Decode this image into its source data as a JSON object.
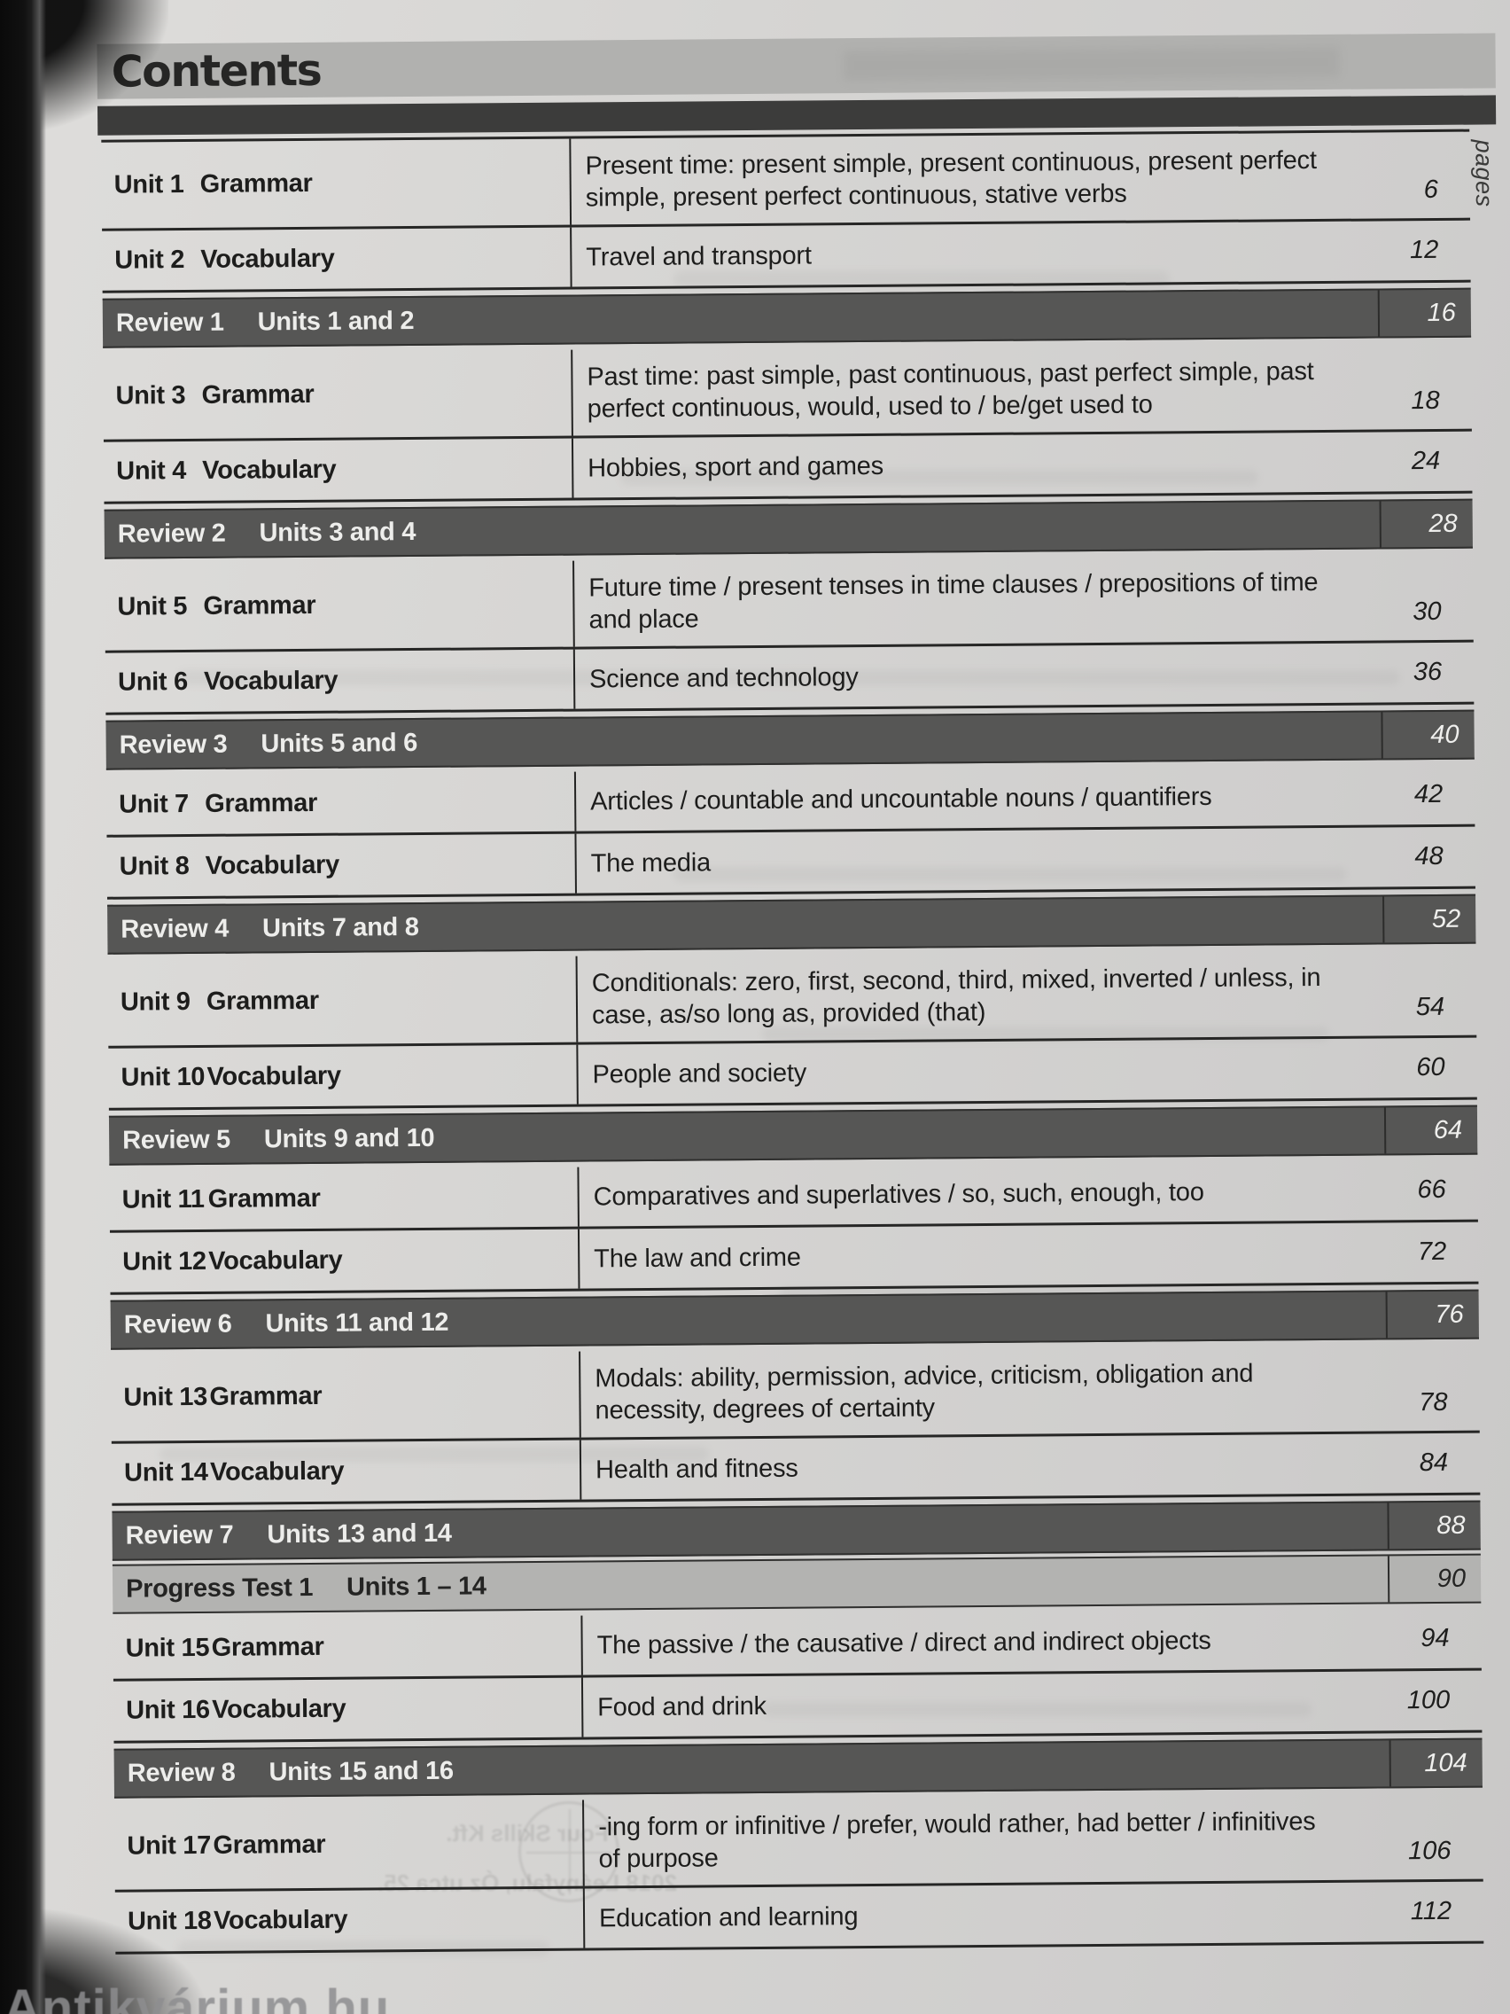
{
  "page": {
    "title": "Contents",
    "pages_label": "pages"
  },
  "toc": {
    "rows": [
      {
        "type": "unit",
        "unit": "Unit 1",
        "category": "Grammar",
        "description": "Present time: present simple, present continuous, present perfect simple, present perfect continuous, stative verbs",
        "page": "6",
        "lines": 2
      },
      {
        "type": "unit",
        "unit": "Unit 2",
        "category": "Vocabulary",
        "description": "Travel and transport",
        "page": "12",
        "lines": 1
      },
      {
        "type": "review",
        "label": "Review 1",
        "units": "Units 1 and 2",
        "page": "16"
      },
      {
        "type": "unit",
        "unit": "Unit 3",
        "category": "Grammar",
        "description": "Past time: past simple, past continuous, past perfect simple, past perfect continuous, would, used to / be/get used to",
        "page": "18",
        "lines": 2
      },
      {
        "type": "unit",
        "unit": "Unit 4",
        "category": "Vocabulary",
        "description": "Hobbies, sport and games",
        "page": "24",
        "lines": 1
      },
      {
        "type": "review",
        "label": "Review 2",
        "units": "Units 3 and 4",
        "page": "28"
      },
      {
        "type": "unit",
        "unit": "Unit 5",
        "category": "Grammar",
        "description": "Future time / present tenses in time clauses / prepositions of time and place",
        "page": "30",
        "lines": 2
      },
      {
        "type": "unit",
        "unit": "Unit 6",
        "category": "Vocabulary",
        "description": "Science and technology",
        "page": "36",
        "lines": 1
      },
      {
        "type": "review",
        "label": "Review 3",
        "units": "Units 5 and 6",
        "page": "40"
      },
      {
        "type": "unit",
        "unit": "Unit 7",
        "category": "Grammar",
        "description": "Articles / countable and uncountable nouns / quantifiers",
        "page": "42",
        "lines": 1
      },
      {
        "type": "unit",
        "unit": "Unit 8",
        "category": "Vocabulary",
        "description": "The media",
        "page": "48",
        "lines": 1
      },
      {
        "type": "review",
        "label": "Review 4",
        "units": "Units 7 and 8",
        "page": "52"
      },
      {
        "type": "unit",
        "unit": "Unit 9",
        "category": "Grammar",
        "description": "Conditionals: zero, first, second, third, mixed, inverted / unless, in case, as/so long as, provided (that)",
        "page": "54",
        "lines": 2
      },
      {
        "type": "unit",
        "unit": "Unit 10",
        "category": "Vocabulary",
        "description": "People and society",
        "page": "60",
        "lines": 1
      },
      {
        "type": "review",
        "label": "Review 5",
        "units": "Units 9 and 10",
        "page": "64"
      },
      {
        "type": "unit",
        "unit": "Unit 11",
        "category": "Grammar",
        "description": "Comparatives and superlatives / so, such, enough, too",
        "page": "66",
        "lines": 1
      },
      {
        "type": "unit",
        "unit": "Unit 12",
        "category": "Vocabulary",
        "description": "The law and crime",
        "page": "72",
        "lines": 1
      },
      {
        "type": "review",
        "label": "Review 6",
        "units": "Units 11 and 12",
        "page": "76"
      },
      {
        "type": "unit",
        "unit": "Unit 13",
        "category": "Grammar",
        "description": "Modals: ability, permission, advice, criticism, obligation and necessity, degrees of certainty",
        "page": "78",
        "lines": 2
      },
      {
        "type": "unit",
        "unit": "Unit 14",
        "category": "Vocabulary",
        "description": "Health and fitness",
        "page": "84",
        "lines": 1
      },
      {
        "type": "review",
        "label": "Review 7",
        "units": "Units 13 and 14",
        "page": "88",
        "tight_bottom": true
      },
      {
        "type": "progress",
        "label": "Progress Test 1",
        "units": "Units 1 – 14",
        "page": "90"
      },
      {
        "type": "unit",
        "unit": "Unit 15",
        "category": "Grammar",
        "description": "The passive / the causative / direct and indirect objects",
        "page": "94",
        "lines": 1
      },
      {
        "type": "unit",
        "unit": "Unit 16",
        "category": "Vocabulary",
        "description": "Food and drink",
        "page": "100",
        "lines": 1
      },
      {
        "type": "review",
        "label": "Review 8",
        "units": "Units 15 and 16",
        "page": "104"
      },
      {
        "type": "unit",
        "unit": "Unit 17",
        "category": "Grammar",
        "description": "-ing form or infinitive / prefer, would rather, had better / infinitives of purpose",
        "page": "106",
        "lines": 2
      },
      {
        "type": "unit",
        "unit": "Unit 18",
        "category": "Vocabulary",
        "description": "Education and learning",
        "page": "112",
        "lines": 1
      }
    ]
  },
  "artifacts": {
    "watermark": "Antikvárium.hu",
    "stamp_ghost_line1": "Four Skills Kft.",
    "stamp_ghost_line2": "2018 Leányfalu, Óz utca 25."
  },
  "colors": {
    "paper": "#d3d3d1",
    "ink": "#1d1d1c",
    "header_band_grey": "#b1b1af",
    "header_band_dark": "#3c3c3b",
    "review_bar": "#565655",
    "review_text": "#ededeb",
    "progress_bar": "#b3b3b1",
    "scan_edge": "#0a0a0a"
  }
}
